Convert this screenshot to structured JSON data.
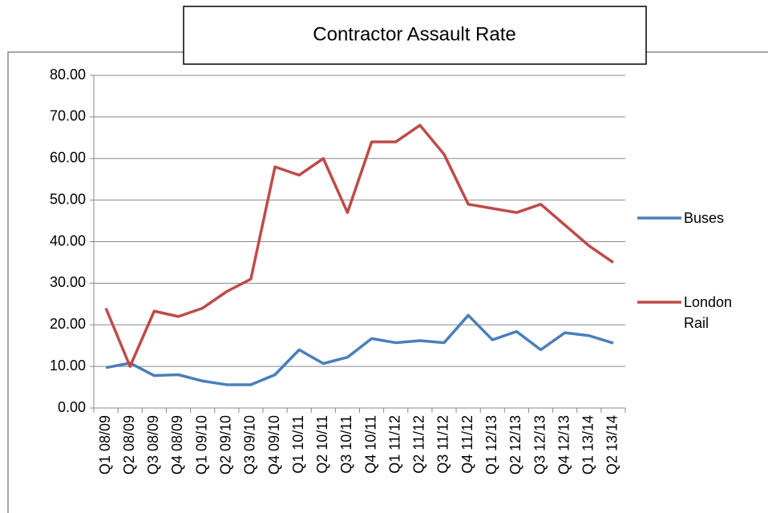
{
  "chart_data": {
    "type": "line",
    "title": "Contractor Assault Rate",
    "categories": [
      "Q1 08/09",
      "Q2 08/09",
      "Q3 08/09",
      "Q4 08/09",
      "Q1 09/10",
      "Q2 09/10",
      "Q3 09/10",
      "Q4 09/10",
      "Q1 10/11",
      "Q2 10/11",
      "Q3 10/11",
      "Q4 10/11",
      "Q1 11/12",
      "Q2 11/12",
      "Q3 11/12",
      "Q4 11/12",
      "Q1 12/13",
      "Q2 12/13",
      "Q3 12/13",
      "Q4 12/13",
      "Q1 13/14",
      "Q2 13/14"
    ],
    "series": [
      {
        "name": "Buses",
        "color": "#4a7ebb",
        "values": [
          9.7,
          10.8,
          7.8,
          8.0,
          6.5,
          5.6,
          5.6,
          8.0,
          14.0,
          10.7,
          12.2,
          16.7,
          15.7,
          16.2,
          15.7,
          22.3,
          16.4,
          18.4,
          14.0,
          18.1,
          17.4,
          15.6
        ]
      },
      {
        "name": "London Rail",
        "color": "#be4b48",
        "values": [
          24,
          10,
          23.3,
          22,
          24,
          28,
          31,
          58,
          56,
          60,
          47,
          64,
          64,
          68,
          61,
          49,
          48,
          47,
          49,
          44,
          39,
          35
        ]
      }
    ],
    "ylim": [
      0,
      80
    ],
    "yticks": [
      {
        "value": 0,
        "label": "0.00"
      },
      {
        "value": 10,
        "label": "10.00"
      },
      {
        "value": 20,
        "label": "20.00"
      },
      {
        "value": 30,
        "label": "30.00"
      },
      {
        "value": 40,
        "label": "40.00"
      },
      {
        "value": 50,
        "label": "50.00"
      },
      {
        "value": 60,
        "label": "60.00"
      },
      {
        "value": 70,
        "label": "70.00"
      },
      {
        "value": 80,
        "label": "80.00"
      }
    ],
    "grid": true,
    "legend": "right"
  }
}
